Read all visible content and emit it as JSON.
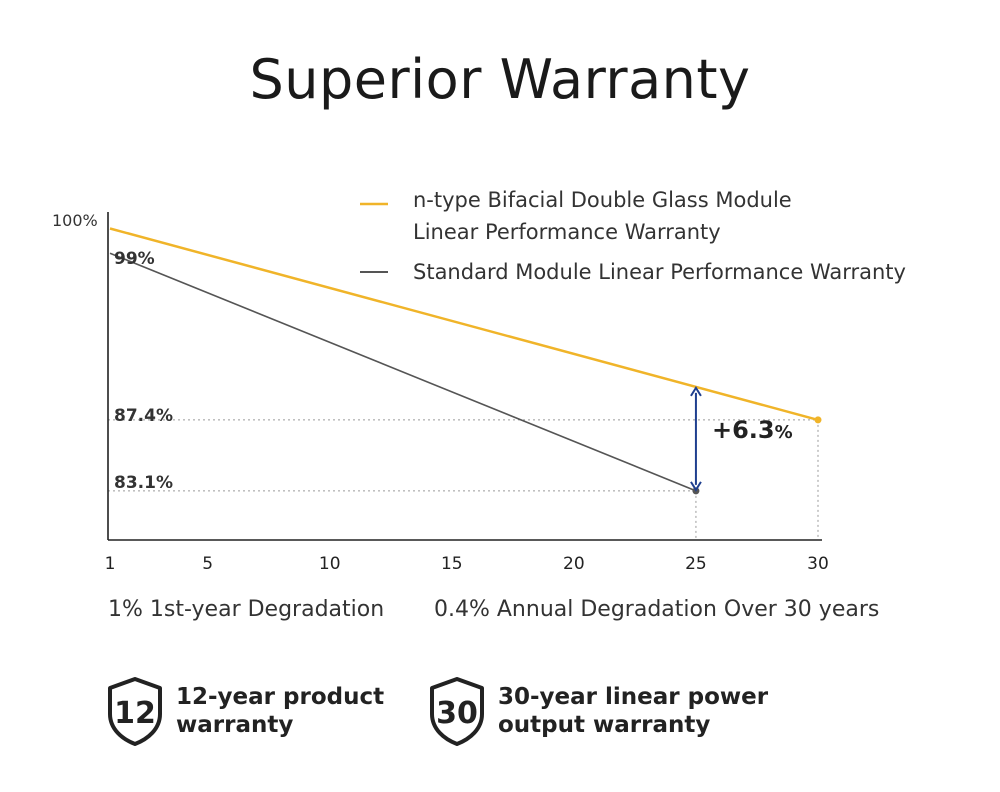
{
  "title": "Superior Warranty",
  "chart_data": {
    "type": "line",
    "title": "",
    "xlabel": "",
    "ylabel": "",
    "x_ticks": [
      1,
      5,
      10,
      15,
      20,
      25,
      30
    ],
    "y_top_label": "100%",
    "xlim": [
      1,
      30
    ],
    "ylim": [
      80,
      100
    ],
    "grid": false,
    "legend_position": "top-right",
    "series": [
      {
        "name": "n-type Bifacial Double Glass Module Linear Performance Warranty",
        "legend_lines": [
          "n-type Bifacial Double Glass Module",
          "Linear Performance Warranty"
        ],
        "color": "#f0b429",
        "x": [
          1,
          30
        ],
        "y": [
          99,
          87.4
        ]
      },
      {
        "name": "Standard Module Linear Performance Warranty",
        "legend_lines": [
          "Standard Module Linear Performance Warranty"
        ],
        "color": "#555555",
        "x": [
          1,
          25
        ],
        "y": [
          97.5,
          83.1
        ]
      }
    ],
    "annotations": {
      "start_label": "99%",
      "ref_labels": [
        "87.4%",
        "83.1%"
      ],
      "gap_value": "+6.3",
      "gap_unit": "%",
      "gap_x": 25,
      "arrow_color": "#1f3f8f"
    }
  },
  "notes": {
    "first_year": "1% 1st-year Degradation",
    "annual": "0.4% Annual Degradation Over 30 years"
  },
  "badges": [
    {
      "number": "12",
      "line1": "12-year product",
      "line2": "warranty",
      "icon": "shield-icon"
    },
    {
      "number": "30",
      "line1": "30-year linear power",
      "line2": "output warranty",
      "icon": "shield-icon"
    }
  ]
}
